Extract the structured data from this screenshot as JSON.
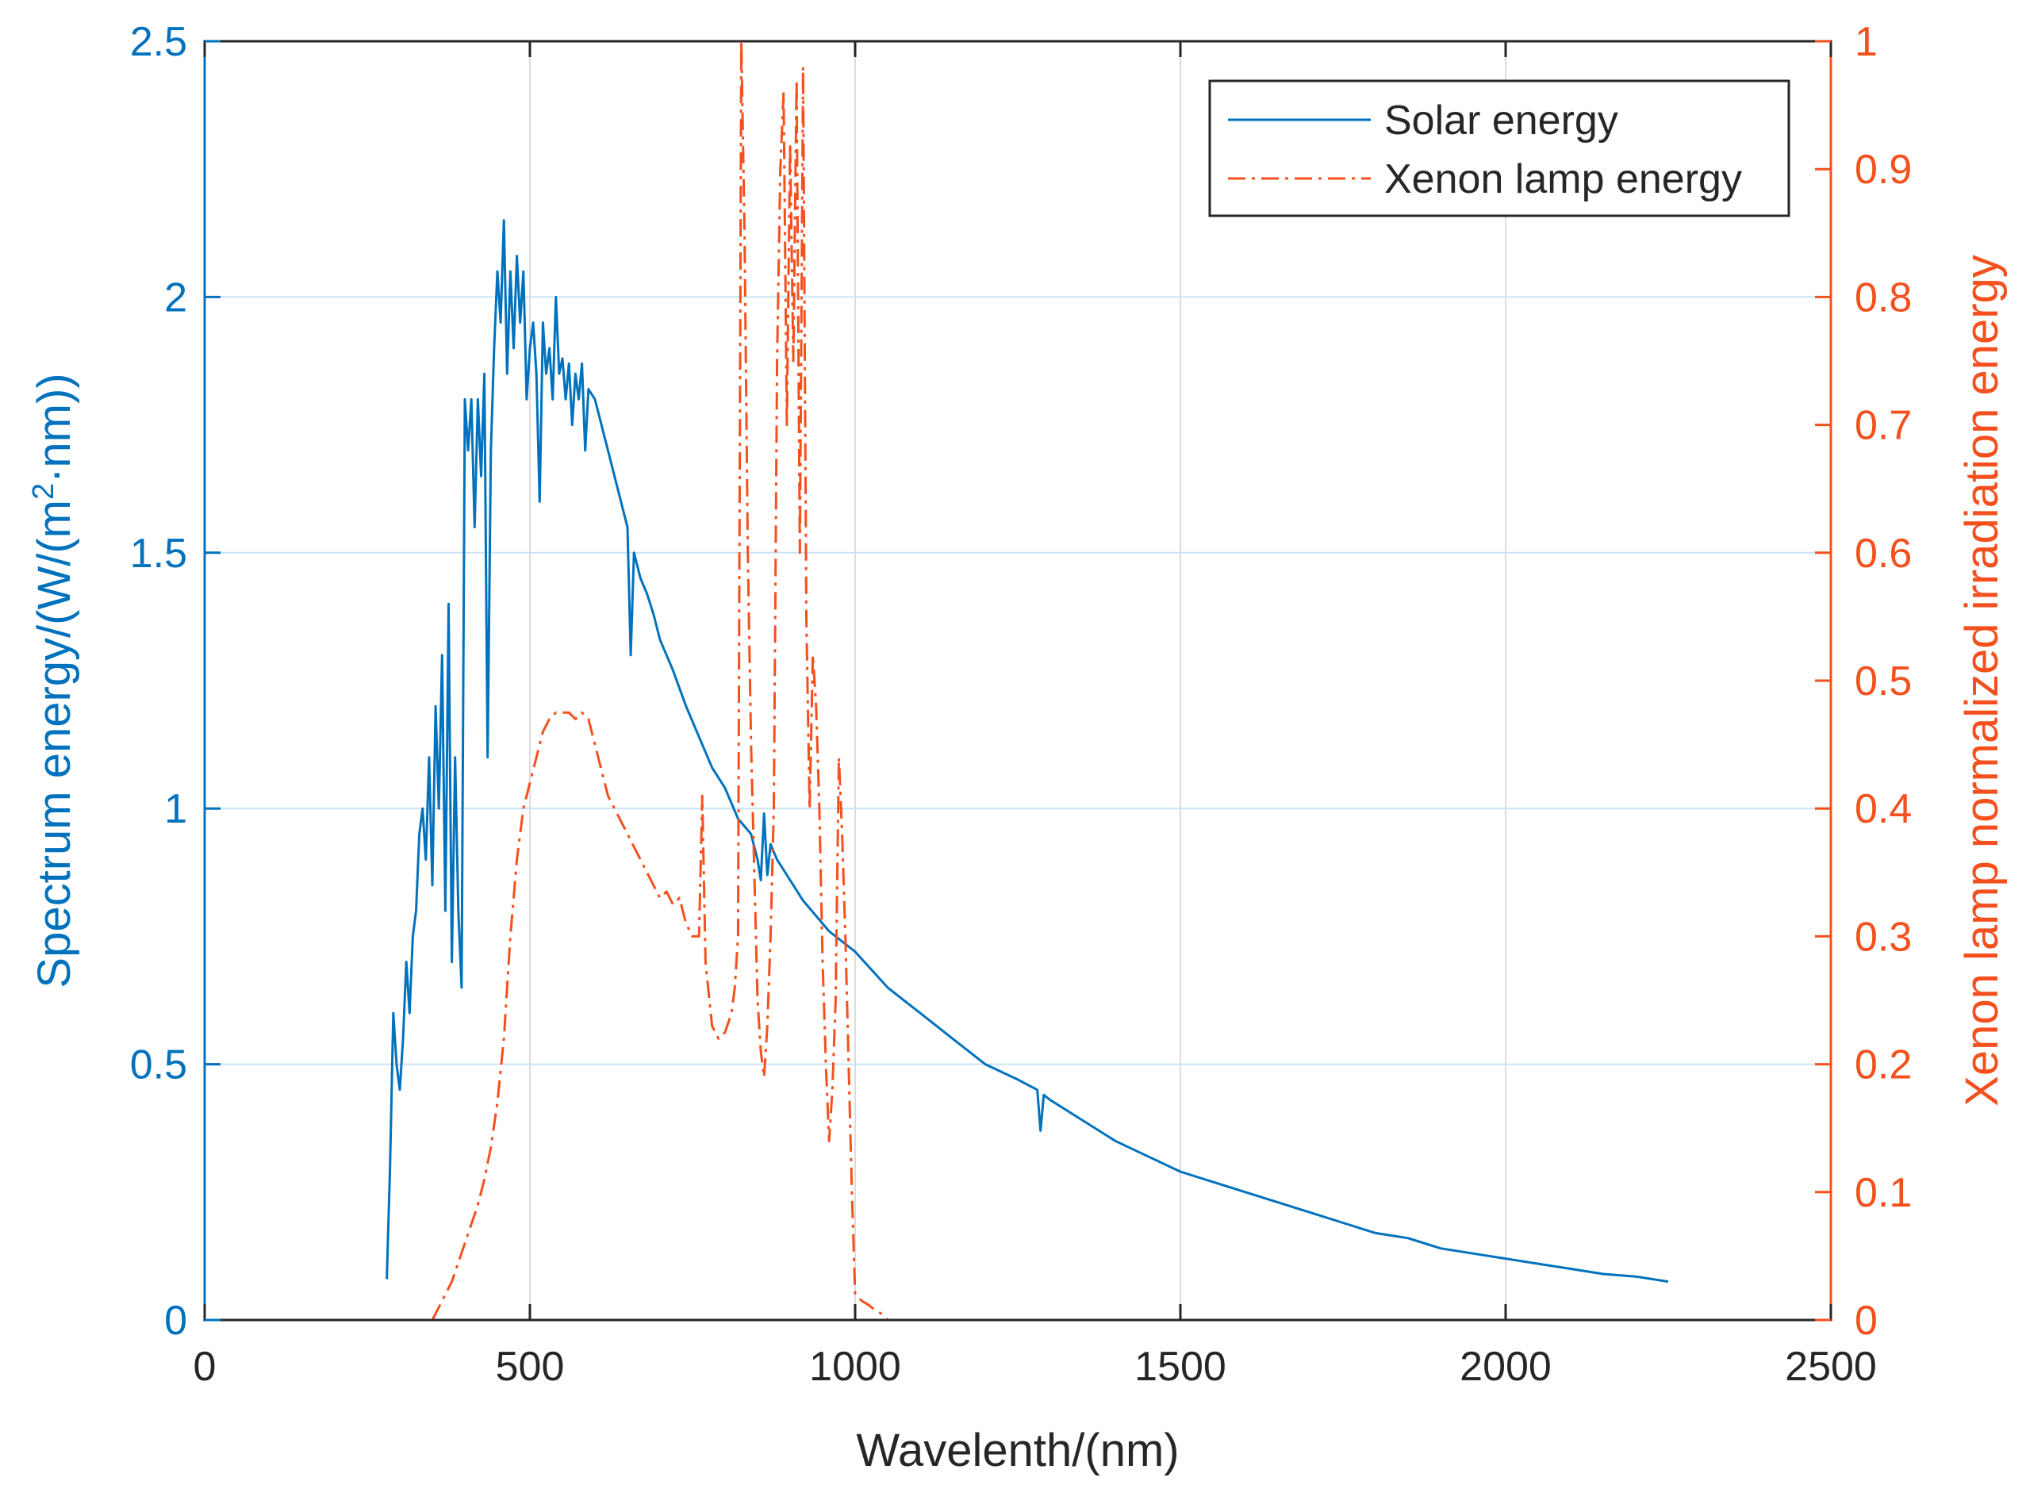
{
  "chart_data": {
    "type": "line",
    "xlabel": "Wavelenth/(nm)",
    "ylabel_left": "Spectrum energy/(W/(m²·nm))",
    "ylabel_left_parts": {
      "pre": "Spectrum energy/(W/(m",
      "sup": "2",
      "post": "·nm))"
    },
    "ylabel_right": "Xenon lamp normalized irradiation energy",
    "xlim": [
      0,
      2500
    ],
    "ylim_left": [
      0,
      2.5
    ],
    "ylim_right": [
      0,
      1
    ],
    "x_ticks": [
      0,
      500,
      1000,
      1500,
      2000,
      2500
    ],
    "x_tick_labels": [
      "0",
      "500",
      "1000",
      "1500",
      "2000",
      "2500"
    ],
    "y_left_ticks": [
      0,
      0.5,
      1,
      1.5,
      2,
      2.5
    ],
    "y_left_tick_labels": [
      "0",
      "0.5",
      "1",
      "1.5",
      "2",
      "2.5"
    ],
    "y_right_ticks": [
      0,
      0.1,
      0.2,
      0.3,
      0.4,
      0.5,
      0.6,
      0.7,
      0.8,
      0.9,
      1
    ],
    "y_right_tick_labels": [
      "0",
      "0.1",
      "0.2",
      "0.3",
      "0.4",
      "0.5",
      "0.6",
      "0.7",
      "0.8",
      "0.9",
      "1"
    ],
    "grid": true,
    "legend_position": "top-right",
    "colors": {
      "solar": "#0072BD",
      "xenon": "#F4501E",
      "grid": "#c9e4f5",
      "axis_right": "#F4501E",
      "axis_left": "#0072BD"
    },
    "series": [
      {
        "name": "Solar energy",
        "axis": "left",
        "style": "solid",
        "x": [
          280,
          285,
          290,
          295,
          300,
          305,
          310,
          315,
          320,
          325,
          330,
          335,
          340,
          345,
          350,
          355,
          360,
          365,
          370,
          375,
          380,
          385,
          390,
          395,
          400,
          405,
          410,
          415,
          420,
          425,
          430,
          435,
          440,
          445,
          450,
          455,
          460,
          465,
          470,
          475,
          480,
          485,
          490,
          495,
          500,
          505,
          510,
          515,
          520,
          525,
          530,
          535,
          540,
          545,
          550,
          555,
          560,
          565,
          570,
          575,
          580,
          585,
          590,
          600,
          610,
          620,
          630,
          640,
          650,
          655,
          660,
          670,
          680,
          690,
          700,
          720,
          740,
          760,
          780,
          800,
          820,
          840,
          850,
          855,
          860,
          865,
          870,
          880,
          900,
          920,
          940,
          960,
          980,
          1000,
          1050,
          1100,
          1150,
          1200,
          1250,
          1280,
          1285,
          1290,
          1300,
          1350,
          1400,
          1450,
          1500,
          1550,
          1600,
          1650,
          1700,
          1750,
          1800,
          1850,
          1900,
          1950,
          2000,
          2050,
          2100,
          2150,
          2200,
          2250
        ],
        "y": [
          0.08,
          0.3,
          0.6,
          0.5,
          0.45,
          0.55,
          0.7,
          0.6,
          0.75,
          0.8,
          0.95,
          1.0,
          0.9,
          1.1,
          0.85,
          1.2,
          1.0,
          1.3,
          0.8,
          1.4,
          0.7,
          1.1,
          0.8,
          0.65,
          1.8,
          1.7,
          1.8,
          1.55,
          1.8,
          1.65,
          1.85,
          1.1,
          1.7,
          1.9,
          2.05,
          1.95,
          2.15,
          1.85,
          2.05,
          1.9,
          2.08,
          1.95,
          2.05,
          1.8,
          1.9,
          1.95,
          1.85,
          1.6,
          1.95,
          1.85,
          1.9,
          1.8,
          2.0,
          1.85,
          1.88,
          1.8,
          1.87,
          1.75,
          1.85,
          1.8,
          1.87,
          1.7,
          1.82,
          1.8,
          1.75,
          1.7,
          1.65,
          1.6,
          1.55,
          1.3,
          1.5,
          1.45,
          1.42,
          1.38,
          1.33,
          1.27,
          1.2,
          1.14,
          1.08,
          1.04,
          0.98,
          0.95,
          0.9,
          0.86,
          0.99,
          0.87,
          0.93,
          0.9,
          0.86,
          0.82,
          0.79,
          0.76,
          0.74,
          0.72,
          0.65,
          0.6,
          0.55,
          0.5,
          0.47,
          0.45,
          0.37,
          0.44,
          0.43,
          0.39,
          0.35,
          0.32,
          0.29,
          0.27,
          0.25,
          0.23,
          0.21,
          0.19,
          0.17,
          0.16,
          0.14,
          0.13,
          0.12,
          0.11,
          0.1,
          0.09,
          0.085,
          0.075
        ]
      },
      {
        "name": "Xenon lamp energy",
        "axis": "right",
        "style": "dashdot",
        "x": [
          350,
          360,
          370,
          380,
          390,
          400,
          410,
          420,
          430,
          440,
          450,
          460,
          470,
          480,
          490,
          495,
          500,
          510,
          520,
          530,
          540,
          550,
          560,
          570,
          580,
          590,
          600,
          610,
          620,
          630,
          640,
          650,
          660,
          670,
          680,
          690,
          700,
          710,
          720,
          730,
          740,
          750,
          760,
          765,
          770,
          780,
          790,
          800,
          810,
          815,
          820,
          825,
          830,
          835,
          840,
          845,
          850,
          855,
          860,
          865,
          870,
          875,
          880,
          885,
          890,
          895,
          900,
          905,
          910,
          915,
          920,
          925,
          930,
          935,
          940,
          945,
          950,
          955,
          960,
          965,
          970,
          975,
          980,
          985,
          990,
          995,
          1000,
          1010,
          1020,
          1030,
          1040,
          1050
        ],
        "y": [
          0.0,
          0.01,
          0.02,
          0.03,
          0.045,
          0.06,
          0.075,
          0.09,
          0.11,
          0.135,
          0.17,
          0.22,
          0.3,
          0.36,
          0.4,
          0.41,
          0.42,
          0.44,
          0.46,
          0.47,
          0.475,
          0.475,
          0.475,
          0.47,
          0.475,
          0.47,
          0.45,
          0.43,
          0.41,
          0.4,
          0.39,
          0.38,
          0.37,
          0.36,
          0.35,
          0.34,
          0.33,
          0.335,
          0.325,
          0.33,
          0.31,
          0.3,
          0.3,
          0.41,
          0.28,
          0.23,
          0.22,
          0.225,
          0.24,
          0.26,
          0.3,
          1.0,
          0.85,
          0.6,
          0.45,
          0.35,
          0.25,
          0.21,
          0.19,
          0.23,
          0.3,
          0.4,
          0.75,
          0.9,
          0.96,
          0.7,
          0.92,
          0.75,
          0.97,
          0.6,
          0.98,
          0.55,
          0.4,
          0.52,
          0.48,
          0.4,
          0.28,
          0.2,
          0.14,
          0.18,
          0.25,
          0.44,
          0.38,
          0.3,
          0.2,
          0.1,
          0.02,
          0.015,
          0.012,
          0.008,
          0.005,
          0.0
        ]
      }
    ]
  }
}
